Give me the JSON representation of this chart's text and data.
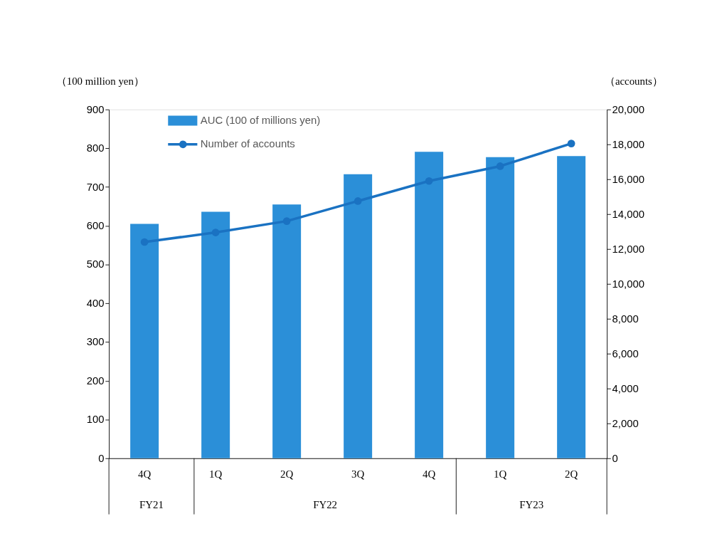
{
  "chart_data": {
    "type": "bar",
    "categories": [
      "4Q",
      "1Q",
      "2Q",
      "3Q",
      "4Q",
      "1Q",
      "2Q"
    ],
    "annotations": [
      "FY21",
      "FY22",
      "FY23"
    ],
    "ylabel": "（100 million yen）",
    "y2label": "（accounts）",
    "series": [
      {
        "name": "AUC (100 of millions yen)",
        "color": "#2b8fd8",
        "values": [
          605,
          636,
          655,
          733,
          791,
          777,
          780
        ]
      },
      {
        "name": "Number of accounts",
        "type": "line",
        "axis": "y2",
        "color": "#1a72c2",
        "values": [
          12400,
          12950,
          13600,
          14750,
          15900,
          16750,
          18050
        ]
      }
    ],
    "ylim": [
      0,
      900
    ],
    "yticks": [
      0,
      100,
      200,
      300,
      400,
      500,
      600,
      700,
      800,
      900
    ],
    "y2lim": [
      0,
      20000
    ],
    "y2ticks": [
      0,
      {
        "value": 2000,
        "label": "2,000"
      },
      {
        "value": 4000,
        "label": "4,000"
      },
      {
        "value": 6000,
        "label": "6,000"
      },
      {
        "value": 8000,
        "label": "8,000"
      },
      {
        "value": 10000,
        "label": "10,000"
      },
      {
        "value": 12000,
        "label": "12,000"
      },
      {
        "value": 14000,
        "label": "14,000"
      },
      {
        "value": 16000,
        "label": "16,000"
      },
      {
        "value": 18000,
        "label": "18,000"
      },
      {
        "value": 20000,
        "label": "20,000"
      }
    ],
    "marker": "circle",
    "legend": "top left",
    "grid": false
  }
}
